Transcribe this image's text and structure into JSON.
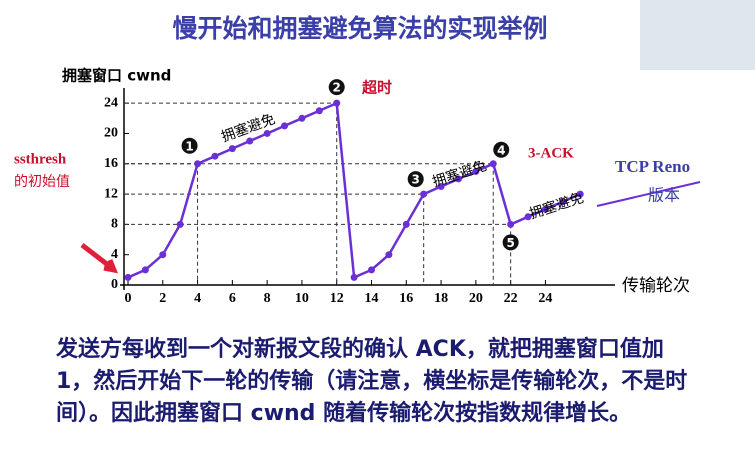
{
  "chart_data": {
    "type": "line",
    "title": "慢开始和拥塞避免算法的实现举例",
    "y_label": "拥塞窗口 cwnd",
    "x_label": "传输轮次",
    "x": [
      0,
      1,
      2,
      3,
      4,
      5,
      6,
      7,
      8,
      9,
      10,
      11,
      12,
      13,
      14,
      15,
      16,
      17,
      18,
      19,
      20,
      21,
      22,
      23,
      24,
      25,
      26
    ],
    "series": [
      {
        "name": "cwnd",
        "color": "#6b2fd6",
        "values": [
          1,
          2,
          4,
          8,
          16,
          17,
          18,
          19,
          20,
          21,
          22,
          23,
          24,
          1,
          2,
          4,
          8,
          12,
          13,
          14,
          15,
          16,
          8,
          9,
          10,
          11,
          12
        ]
      }
    ],
    "xlim": [
      0,
      28
    ],
    "ylim": [
      0,
      26
    ],
    "xticks": [
      0,
      2,
      4,
      6,
      8,
      10,
      12,
      14,
      16,
      18,
      20,
      22,
      24
    ],
    "yticks": [
      0,
      4,
      8,
      12,
      16,
      20,
      24
    ],
    "markers": [
      {
        "label": "1",
        "x": 4
      },
      {
        "label": "2",
        "x": 12
      },
      {
        "label": "3",
        "x": 17
      },
      {
        "label": "4",
        "x": 21
      },
      {
        "label": "5",
        "x": 22
      }
    ],
    "annotations": {
      "ssthresh": "ssthresh",
      "initial": "的初始值",
      "timeout": "超时",
      "three_ack": "3-ACK",
      "ca1": "拥塞避免",
      "ca2": "拥塞避免",
      "ca3": "拥塞避免",
      "reno1": "TCP Reno",
      "reno2": "版本"
    }
  },
  "caption": "发送方每收到一个对新报文段的确认 ACK，就把拥塞窗口值加 1，然后开始下一轮的传输（请注意，横坐标是传输轮次，不是时间）。因此拥塞窗口 cwnd 随着传输轮次按指数规律增长。"
}
